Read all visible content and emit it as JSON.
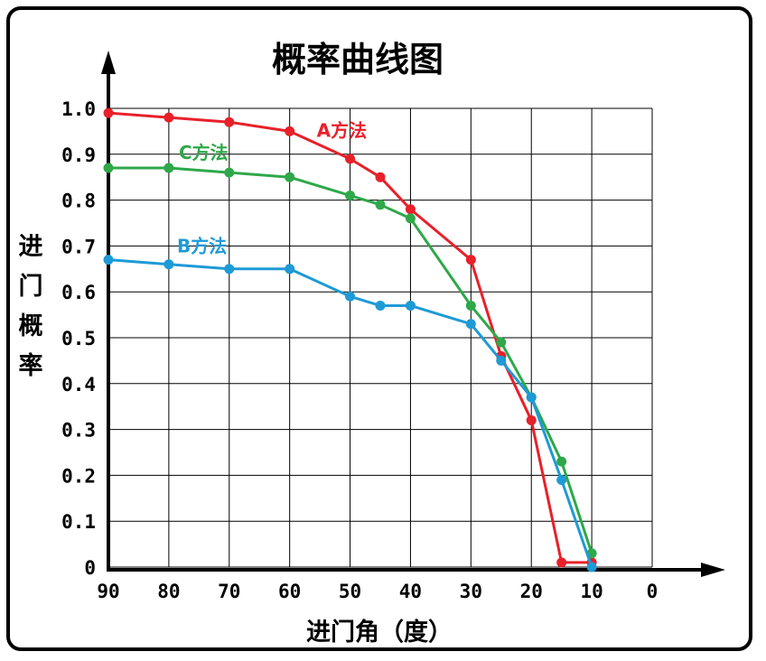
{
  "chart_data": {
    "type": "line",
    "title": "概率曲线图",
    "xlabel": "进门角（度）",
    "ylabel": "进门概率",
    "x_ticks": [
      "90",
      "80",
      "70",
      "60",
      "50",
      "40",
      "30",
      "20",
      "10",
      "0"
    ],
    "y_ticks": [
      "0",
      "0.1",
      "0.2",
      "0.3",
      "0.4",
      "0.5",
      "0.6",
      "0.7",
      "0.8",
      "0.9",
      "1.0"
    ],
    "xlim": [
      90,
      0
    ],
    "ylim": [
      0,
      1.0
    ],
    "grid": true,
    "series": [
      {
        "name": "A方法",
        "color": "#e8202a",
        "x": [
          90,
          80,
          70,
          60,
          50,
          45,
          40,
          30,
          25,
          20,
          15,
          10
        ],
        "y": [
          0.99,
          0.98,
          0.97,
          0.95,
          0.89,
          0.85,
          0.78,
          0.67,
          0.46,
          0.32,
          0.01,
          0.01
        ]
      },
      {
        "name": "C方法",
        "color": "#2ea84a",
        "x": [
          90,
          80,
          70,
          60,
          50,
          45,
          40,
          30,
          25,
          20,
          15,
          10
        ],
        "y": [
          0.87,
          0.87,
          0.86,
          0.85,
          0.81,
          0.79,
          0.76,
          0.57,
          0.49,
          0.37,
          0.23,
          0.03
        ]
      },
      {
        "name": "B方法",
        "color": "#1e9ad6",
        "x": [
          90,
          80,
          70,
          60,
          50,
          45,
          40,
          30,
          25,
          20,
          15,
          10
        ],
        "y": [
          0.67,
          0.66,
          0.65,
          0.65,
          0.59,
          0.57,
          0.57,
          0.53,
          0.45,
          0.37,
          0.19,
          0.0
        ]
      }
    ]
  }
}
